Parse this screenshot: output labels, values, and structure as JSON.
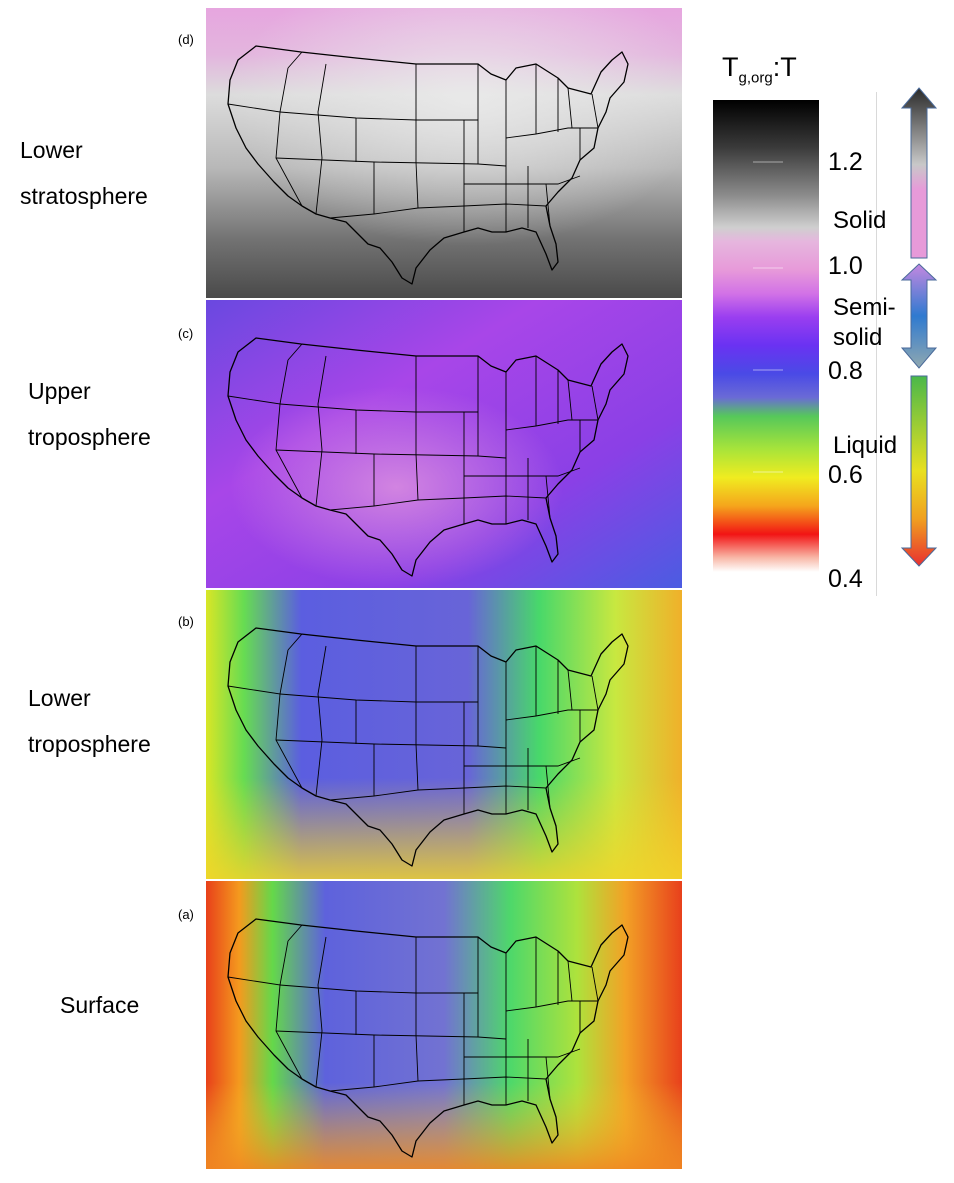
{
  "figure": {
    "panels": [
      {
        "tag": "(d)",
        "label_lines": [
          "Lower",
          "stratosphere"
        ]
      },
      {
        "tag": "(c)",
        "label_lines": [
          "Upper",
          "troposphere"
        ]
      },
      {
        "tag": "(b)",
        "label_lines": [
          "Lower",
          "troposphere"
        ]
      },
      {
        "tag": "(a)",
        "label_lines": [
          "Surface"
        ]
      }
    ],
    "colorbar": {
      "title_main": "T",
      "title_sub": "g,org",
      "title_tail": ":T",
      "ticks": [
        "1.2",
        "1.0",
        "0.8",
        "0.6",
        "0.4"
      ],
      "tick_values": [
        1.2,
        1.0,
        0.8,
        0.6,
        0.4
      ],
      "range": [
        0.4,
        1.35
      ],
      "phases": {
        "solid": "Solid",
        "semi_line1": "Semi-",
        "semi_line2": "solid",
        "liquid": "Liquid"
      },
      "phase_colors": {
        "solid": "#e79ad9",
        "semisolid": "#5a72d8",
        "liquid": "#e8e020"
      }
    }
  }
}
